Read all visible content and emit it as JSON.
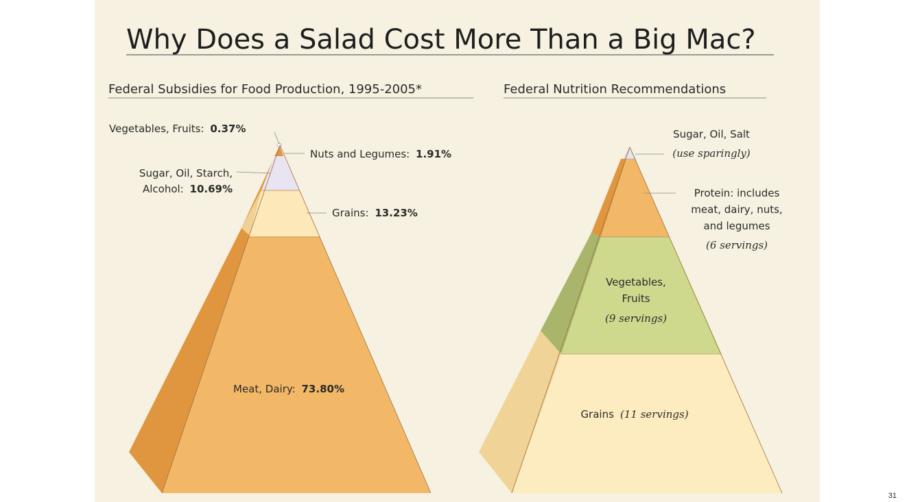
{
  "title": "Why Does a Salad Cost More Than a Big Mac?",
  "page_number": "31",
  "left_panel": {
    "heading": "Federal Subsidies for Food Production, 1995-2005*",
    "labels": {
      "veg_fruits": "Vegetables, Fruits:",
      "veg_fruits_value": "0.37%",
      "nuts_legumes": "Nuts and Legumes:",
      "nuts_legumes_value": "1.91%",
      "sugar_line1": "Sugar, Oil, Starch,",
      "sugar_line2": "Alcohol:",
      "sugar_value": "10.69%",
      "grains": "Grains:",
      "grains_value": "13.23%",
      "meat": "Meat, Dairy:",
      "meat_value": "73.80%"
    }
  },
  "right_panel": {
    "heading": "Federal Nutrition Recommendations",
    "labels": {
      "sugar": "Sugar, Oil, Salt",
      "sugar_note": "(use sparingly)",
      "protein_line1": "Protein:  includes",
      "protein_line2": "meat, dairy, nuts,",
      "protein_line3": "and legumes",
      "protein_note": "(6 servings)",
      "veg_line1": "Vegetables,",
      "veg_line2": "Fruits",
      "veg_note": "(9 servings)",
      "grains": "Grains",
      "grains_note": "(11 servings)"
    }
  },
  "colors": {
    "background": "#f6f1e0",
    "meat": "#f2b868",
    "meat_side": "#e0963f",
    "grains_left": "#fce8b8",
    "grains_left_side": "#f0d093",
    "sugar_top": "#e8e4f2",
    "vegetables": "#cfd98e",
    "vegetables_side": "#a8b56a",
    "protein": "#f2b868",
    "protein_side": "#e0963f",
    "grains_right": "#fdecbf",
    "grains_right_side": "#f0d396"
  }
}
